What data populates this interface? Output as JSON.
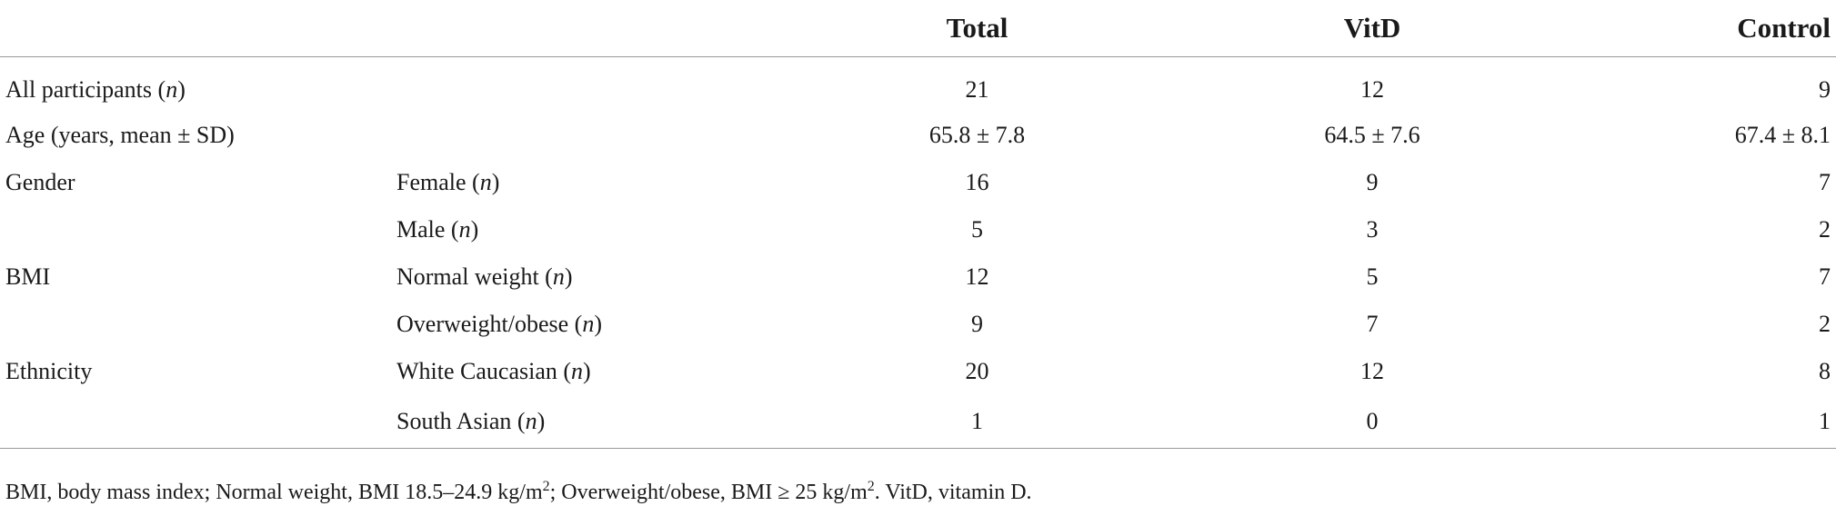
{
  "table": {
    "headers": {
      "total": "Total",
      "vitd": "VitD",
      "control": "Control"
    },
    "rows": [
      {
        "label": "All participants (",
        "label_italic": "n",
        "label_end": ")",
        "sub": "",
        "sub_italic": "",
        "sub_end": "",
        "total": "21",
        "vitd": "12",
        "control": "9"
      },
      {
        "label": "Age (years, mean ± SD)",
        "label_italic": "",
        "label_end": "",
        "sub": "",
        "sub_italic": "",
        "sub_end": "",
        "total": "65.8 ± 7.8",
        "vitd": "64.5 ± 7.6",
        "control": "67.4 ± 8.1"
      },
      {
        "label": "Gender",
        "label_italic": "",
        "label_end": "",
        "sub": "Female (",
        "sub_italic": "n",
        "sub_end": ")",
        "total": "16",
        "vitd": "9",
        "control": "7"
      },
      {
        "label": "",
        "label_italic": "",
        "label_end": "",
        "sub": "Male (",
        "sub_italic": "n",
        "sub_end": ")",
        "total": "5",
        "vitd": "3",
        "control": "2"
      },
      {
        "label": "BMI",
        "label_italic": "",
        "label_end": "",
        "sub": "Normal weight (",
        "sub_italic": "n",
        "sub_end": ")",
        "total": "12",
        "vitd": "5",
        "control": "7"
      },
      {
        "label": "",
        "label_italic": "",
        "label_end": "",
        "sub": "Overweight/obese (",
        "sub_italic": "n",
        "sub_end": ")",
        "total": "9",
        "vitd": "7",
        "control": "2"
      },
      {
        "label": "Ethnicity",
        "label_italic": "",
        "label_end": "",
        "sub": "White Caucasian (",
        "sub_italic": "n",
        "sub_end": ")",
        "total": "20",
        "vitd": "12",
        "control": "8"
      },
      {
        "label": "",
        "label_italic": "",
        "label_end": "",
        "sub": "South Asian (",
        "sub_italic": "n",
        "sub_end": ")",
        "total": "1",
        "vitd": "0",
        "control": "1"
      }
    ]
  },
  "footnote": {
    "part1": "BMI, body mass index; Normal weight, BMI 18.5–24.9 kg/m",
    "sup1": "2",
    "part2": "; Overweight/obese, BMI ≥ 25 kg/m",
    "sup2": "2",
    "part3": ". VitD, vitamin D."
  }
}
